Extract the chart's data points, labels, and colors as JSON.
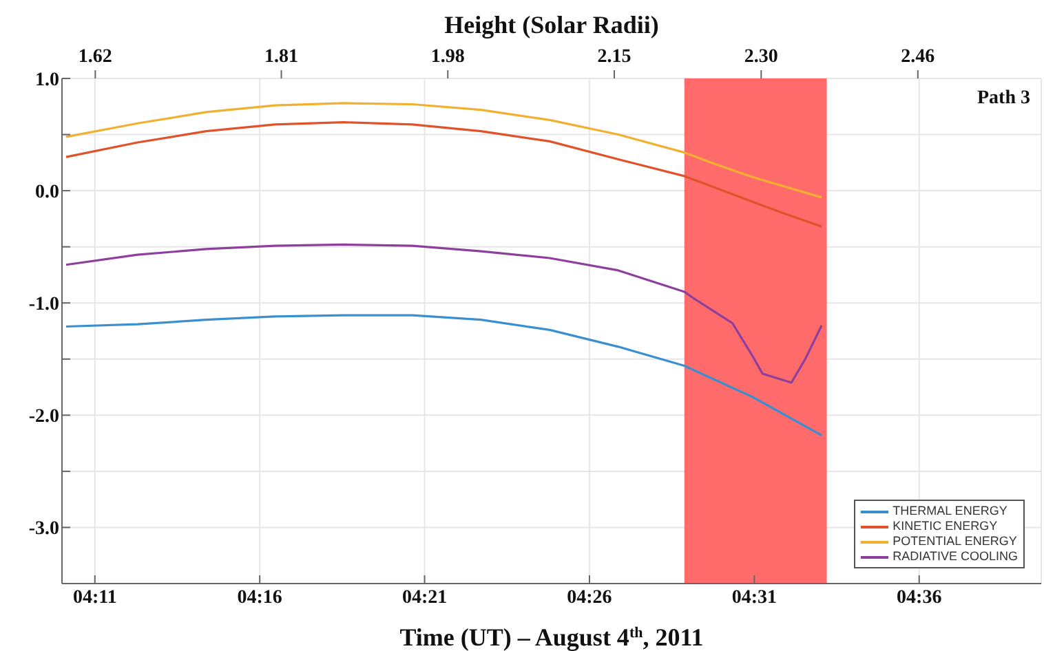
{
  "chart_data": {
    "type": "line",
    "x2label": "Height (Solar Radii)",
    "xlabel": "Time (UT) – August 4$^{th}$, 2011",
    "annotations": [
      "Path 3"
    ],
    "xlim": [
      4.1667,
      4.6617
    ],
    "xticks": [
      {
        "value": 4.18333,
        "label": "04:11"
      },
      {
        "value": 4.26667,
        "label": "04:16"
      },
      {
        "value": 4.35,
        "label": "04:21"
      },
      {
        "value": 4.43333,
        "label": "04:26"
      },
      {
        "value": 4.51667,
        "label": "04:31"
      },
      {
        "value": 4.6,
        "label": "04:36"
      }
    ],
    "x2lim": [
      1.586,
      2.586
    ],
    "x2ticks": [
      1.62,
      1.81,
      1.98,
      2.15,
      {
        "value": 2.3,
        "label": "2.30"
      },
      2.46
    ],
    "ylim": [
      -3.5,
      1.0
    ],
    "yticks": [
      {
        "value": 1,
        "label": "1.0"
      },
      {
        "value": 0.5,
        "label": null
      },
      {
        "value": 0,
        "label": "0.0"
      },
      {
        "value": -0.5,
        "label": null
      },
      {
        "value": -1,
        "label": "-1.0"
      },
      {
        "value": -1.5,
        "label": null
      },
      {
        "value": -2,
        "label": "-2.0"
      },
      {
        "value": -2.5,
        "label": null
      },
      {
        "value": -3,
        "label": "-3.0"
      }
    ],
    "grid": true,
    "legend": "bottom right",
    "bands": [
      {
        "axis": "x",
        "from": 4.4813,
        "to": 4.5533,
        "color": "#ff6b6b"
      }
    ],
    "series": [
      {
        "name": "THERMAL ENERGY",
        "color": "#3a8fd0",
        "x": [
          4.1688,
          4.2049,
          4.2396,
          4.2743,
          4.309,
          4.3438,
          4.3785,
          4.4132,
          4.4479,
          4.4813,
          4.516,
          4.5507
        ],
        "values": [
          -1.21,
          -1.19,
          -1.15,
          -1.12,
          -1.11,
          -1.11,
          -1.15,
          -1.24,
          -1.39,
          -1.56,
          -1.84,
          -2.18
        ]
      },
      {
        "name": "KINETIC ENERGY",
        "color": "#e0522a",
        "x": [
          4.1688,
          4.2049,
          4.2396,
          4.2743,
          4.309,
          4.3438,
          4.3785,
          4.4132,
          4.4479,
          4.4813,
          4.4965,
          4.516,
          4.5313,
          4.5507
        ],
        "values": [
          0.3,
          0.43,
          0.53,
          0.59,
          0.61,
          0.59,
          0.53,
          0.44,
          0.28,
          0.13,
          0.03,
          -0.1,
          -0.2,
          -0.32
        ]
      },
      {
        "name": "POTENTIAL ENERGY",
        "color": "#f0b030",
        "x": [
          4.1688,
          4.2049,
          4.2396,
          4.2743,
          4.309,
          4.3438,
          4.3785,
          4.4132,
          4.4479,
          4.4813,
          4.4965,
          4.516,
          4.5313,
          4.5507
        ],
        "values": [
          0.48,
          0.6,
          0.7,
          0.76,
          0.78,
          0.77,
          0.72,
          0.63,
          0.5,
          0.34,
          0.24,
          0.12,
          0.04,
          -0.06
        ]
      },
      {
        "name": "RADIATIVE COOLING",
        "color": "#8e3f9e",
        "x": [
          4.1688,
          4.2049,
          4.2396,
          4.2743,
          4.309,
          4.3438,
          4.3785,
          4.4132,
          4.4479,
          4.4813,
          4.4861,
          4.5056,
          4.516,
          4.5208,
          4.5354,
          4.5424,
          4.5507
        ],
        "values": [
          -0.66,
          -0.57,
          -0.52,
          -0.49,
          -0.48,
          -0.49,
          -0.54,
          -0.6,
          -0.71,
          -0.9,
          -0.96,
          -1.18,
          -1.48,
          -1.63,
          -1.71,
          -1.5,
          -1.2
        ]
      }
    ]
  }
}
